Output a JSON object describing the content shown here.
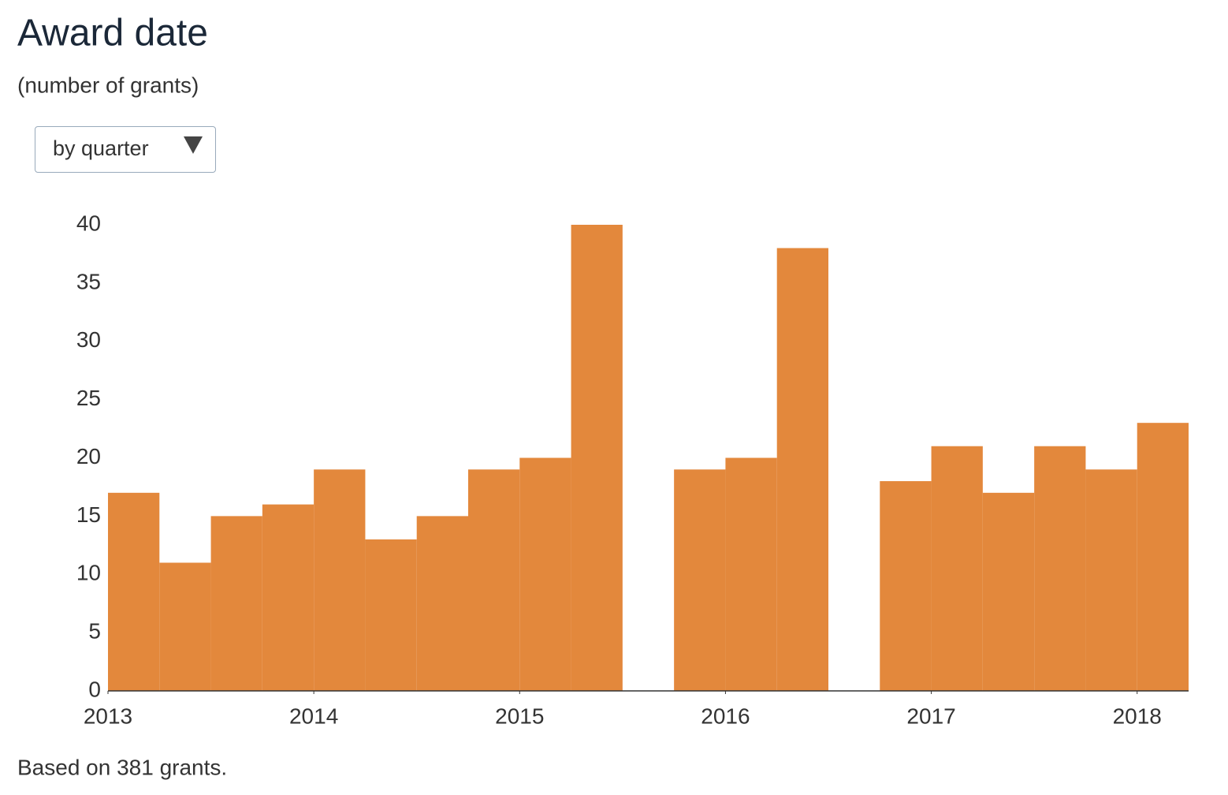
{
  "chart_data": {
    "type": "histogram",
    "title": "Award date",
    "subtitle": "(number of grants)",
    "footnote": "Based on 381 grants.",
    "bins": [
      2013,
      2013.25,
      2013.5,
      2013.75,
      2014,
      2014.25,
      2014.5,
      2014.75,
      2015,
      2015.25,
      2015.5,
      2015.75,
      2016,
      2016.25,
      2016.5,
      2016.75,
      2017,
      2017.25,
      2017.5,
      2017.75,
      2018,
      2018.25
    ],
    "values": [
      17,
      11,
      15,
      16,
      19,
      13,
      15,
      19,
      20,
      40,
      0,
      19,
      20,
      38,
      0,
      18,
      21,
      17,
      21,
      19,
      23
    ],
    "color": "#e3883c",
    "xlim": [
      2013,
      2018.25
    ],
    "xticks": [
      2013,
      2014,
      2015,
      2016,
      2017,
      2018
    ],
    "ylim": [
      0,
      40
    ],
    "yticks": [
      0,
      5,
      10,
      15,
      20,
      25,
      30,
      35,
      40
    ],
    "grid": false
  },
  "controls": {
    "grouping": "by quarter"
  }
}
